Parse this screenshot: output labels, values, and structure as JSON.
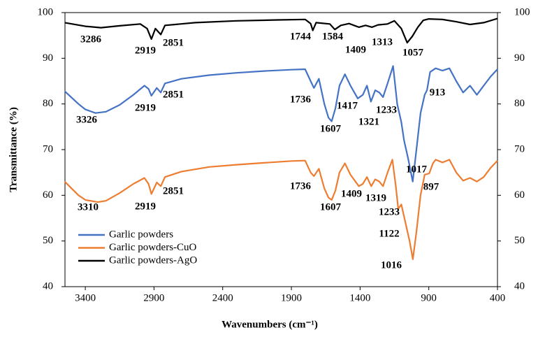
{
  "chart_data": {
    "type": "line",
    "xlabel": "Wavenumbers (cm⁻¹)",
    "ylabel": "Transmittance (%)",
    "xlim": [
      3548,
      400
    ],
    "xticks": [
      3400,
      2900,
      2400,
      1900,
      1400,
      900,
      400
    ],
    "ylim": [
      40,
      100
    ],
    "yticks": [
      40,
      50,
      60,
      70,
      80,
      90,
      100
    ],
    "y2lim": [
      40,
      100
    ],
    "y2ticks": [
      40,
      50,
      60,
      70,
      80,
      90,
      100
    ],
    "legend": "lower left",
    "series": [
      {
        "name": "Garlic powders",
        "color": "#4472c4",
        "x": [
          3550,
          3450,
          3400,
          3326,
          3250,
          3150,
          3050,
          2970,
          2940,
          2919,
          2880,
          2851,
          2820,
          2700,
          2500,
          2300,
          2100,
          1900,
          1800,
          1760,
          1736,
          1700,
          1660,
          1630,
          1607,
          1580,
          1550,
          1510,
          1470,
          1417,
          1380,
          1350,
          1321,
          1290,
          1260,
          1233,
          1200,
          1160,
          1130,
          1100,
          1080,
          1050,
          1017,
          990,
          960,
          930,
          913,
          890,
          850,
          800,
          750,
          700,
          650,
          600,
          550,
          500,
          450,
          400
        ],
        "values": [
          82.8,
          80,
          78.8,
          78,
          78.3,
          79.8,
          82,
          84,
          83.3,
          81.8,
          83.5,
          82.5,
          84.5,
          85.5,
          86.3,
          86.8,
          87.2,
          87.5,
          87.6,
          85,
          83.5,
          85.5,
          80,
          77,
          76.2,
          79,
          84,
          86.5,
          84,
          81.2,
          82,
          84,
          80.5,
          83,
          82.5,
          81.5,
          84.5,
          88.3,
          80,
          76,
          72,
          68,
          63,
          70,
          78,
          82,
          83,
          87,
          87.8,
          87.3,
          87.8,
          85,
          82.5,
          84,
          82,
          84,
          86,
          87.6
        ],
        "peaks": [
          3326,
          2919,
          2851,
          1736,
          1607,
          1417,
          1321,
          1233,
          1017,
          913
        ]
      },
      {
        "name": "Garlic powders-CuO",
        "color": "#ed7d31",
        "x": [
          3550,
          3450,
          3400,
          3310,
          3250,
          3150,
          3050,
          2970,
          2940,
          2919,
          2880,
          2851,
          2820,
          2700,
          2500,
          2300,
          2100,
          1900,
          1800,
          1760,
          1736,
          1700,
          1660,
          1630,
          1607,
          1580,
          1550,
          1510,
          1470,
          1409,
          1380,
          1350,
          1319,
          1290,
          1260,
          1233,
          1200,
          1165,
          1140,
          1122,
          1100,
          1070,
          1040,
          1016,
          990,
          960,
          930,
          897,
          870,
          850,
          800,
          750,
          700,
          650,
          600,
          550,
          500,
          450,
          400
        ],
        "values": [
          63,
          60,
          59,
          58.5,
          58.8,
          60.5,
          62.5,
          63.8,
          62.5,
          60.3,
          62.8,
          62,
          64,
          65.2,
          66.2,
          66.7,
          67.1,
          67.5,
          67.6,
          65,
          64.2,
          65.8,
          61.5,
          59.5,
          59,
          61,
          65,
          67,
          64.5,
          62,
          62.5,
          64,
          62,
          63.5,
          63,
          62,
          65,
          67.8,
          62,
          57,
          58,
          54,
          50,
          46,
          52,
          60,
          64.5,
          64.8,
          67,
          67.8,
          67.2,
          67.8,
          65,
          63.2,
          63.8,
          63,
          64,
          66,
          67.6
        ],
        "peaks": [
          3310,
          2919,
          2851,
          1736,
          1607,
          1409,
          1319,
          1233,
          1122,
          1016,
          897
        ]
      },
      {
        "name": "Garlic powders-AgO",
        "color": "#000000",
        "x": [
          3550,
          3400,
          3286,
          3150,
          3000,
          2950,
          2919,
          2890,
          2851,
          2820,
          2600,
          2300,
          2000,
          1800,
          1760,
          1744,
          1720,
          1620,
          1584,
          1540,
          1480,
          1409,
          1360,
          1313,
          1270,
          1200,
          1150,
          1100,
          1057,
          1020,
          980,
          940,
          900,
          800,
          700,
          600,
          500,
          400
        ],
        "values": [
          97.8,
          97,
          96.7,
          97.1,
          97.5,
          96.5,
          94.2,
          96.5,
          95.2,
          97.2,
          97.8,
          98.2,
          98.4,
          98.5,
          97.6,
          96.1,
          97.8,
          97.5,
          96.3,
          97.2,
          97.6,
          96.8,
          97.2,
          96.8,
          97.3,
          97.5,
          98.2,
          96.5,
          93.4,
          94.8,
          96.8,
          98.3,
          98.6,
          98.5,
          98,
          97.4,
          97.8,
          98.7
        ],
        "peaks": [
          3286,
          2919,
          2851,
          1744,
          1584,
          1409,
          1313,
          1057
        ]
      }
    ]
  }
}
